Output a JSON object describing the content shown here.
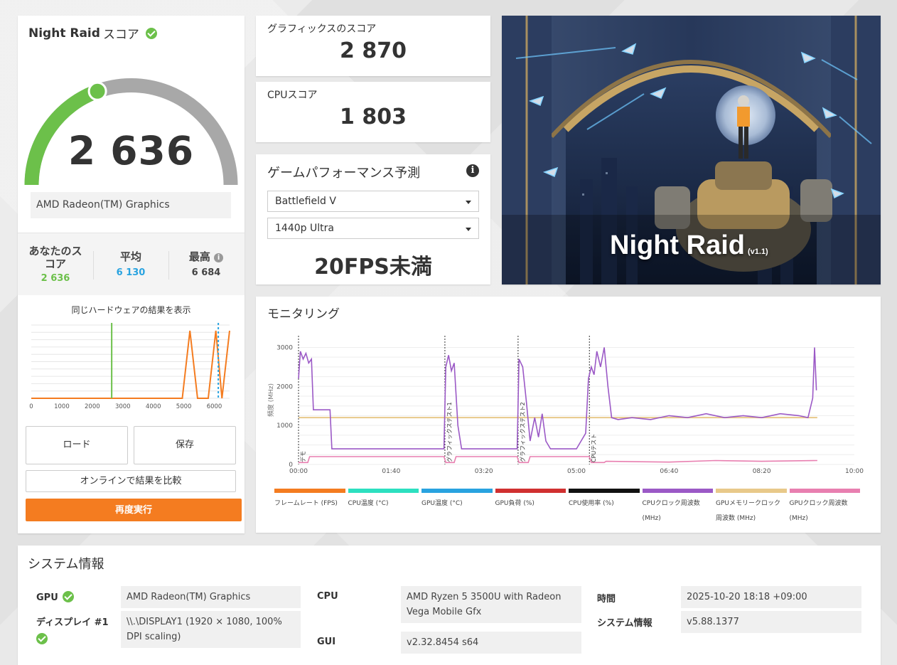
{
  "score": {
    "title": "Night Raid",
    "title_suffix": "スコア",
    "value": "2 636",
    "gauge_fraction": 0.39,
    "gpu_name": "AMD Radeon(TM) Graphics",
    "stats": {
      "your_label": "あなたのスコア",
      "your_value": "2 636",
      "avg_label": "平均",
      "avg_value": "6 130",
      "best_label": "最高",
      "best_value": "6 684"
    },
    "histogram": {
      "title": "同じハードウェアの結果を表示",
      "x_ticks": [
        "0",
        "1000",
        "2000",
        "3000",
        "4000",
        "5000",
        "6000"
      ]
    },
    "buttons": {
      "load": "ロード",
      "save": "保存",
      "compare": "オンラインで結果を比較",
      "rerun": "再度実行"
    }
  },
  "subscores": {
    "graphics_label": "グラフィックスのスコア",
    "graphics_value": "2 870",
    "cpu_label": "CPUスコア",
    "cpu_value": "1 803"
  },
  "game_perf": {
    "title": "ゲームパフォーマンス予測",
    "game": "Battlefield V",
    "preset": "1440p Ultra",
    "result": "20FPS未満"
  },
  "banner": {
    "title": "Night Raid",
    "version": "(v1.1)"
  },
  "monitoring": {
    "title": "モニタリング",
    "y_axis_label": "頻度 (MHz)",
    "y_ticks": [
      "0",
      "1000",
      "2000",
      "3000"
    ],
    "x_ticks": [
      "00:00",
      "01:40",
      "03:20",
      "05:00",
      "06:40",
      "08:20",
      "10:00"
    ],
    "markers": [
      "デモ",
      "グラフィックステスト1",
      "グラフィックステスト2",
      "CPUテスト"
    ],
    "legend": [
      {
        "label": "フレームレート (FPS)",
        "color": "#f47c20"
      },
      {
        "label": "CPU温度 (°C)",
        "color": "#2de0c0"
      },
      {
        "label": "GPU温度 (°C)",
        "color": "#29a3e0"
      },
      {
        "label": "GPU負荷 (%)",
        "color": "#d03030"
      },
      {
        "label": "CPU使用率 (%)",
        "color": "#111111"
      },
      {
        "label": "CPUクロック周波数 (MHz)",
        "color": "#9b59c6"
      },
      {
        "label": "GPUメモリークロック周波数 (MHz)",
        "color": "#e8c98a"
      },
      {
        "label": "GPUクロック周波数 (MHz)",
        "color": "#e87fb0"
      }
    ]
  },
  "system": {
    "title": "システム情報",
    "gpu_label": "GPU",
    "gpu_value": "AMD Radeon(TM) Graphics",
    "display_label": "ディスプレイ #1",
    "display_value": "\\\\.\\DISPLAY1 (1920 × 1080, 100% DPI scaling)",
    "cpu_label": "CPU",
    "cpu_value": "AMD Ryzen 5 3500U with Radeon Vega Mobile Gfx",
    "gui_label": "GUI",
    "gui_value": "v2.32.8454 s64",
    "time_label": "時間",
    "time_value": "2025-10-20 18:18 +09:00",
    "sysinfo_label": "システム情報",
    "sysinfo_value": "v5.88.1377"
  },
  "colors": {
    "accent_orange": "#f47c20",
    "green": "#6cc04a",
    "blue": "#29a3e0"
  }
}
